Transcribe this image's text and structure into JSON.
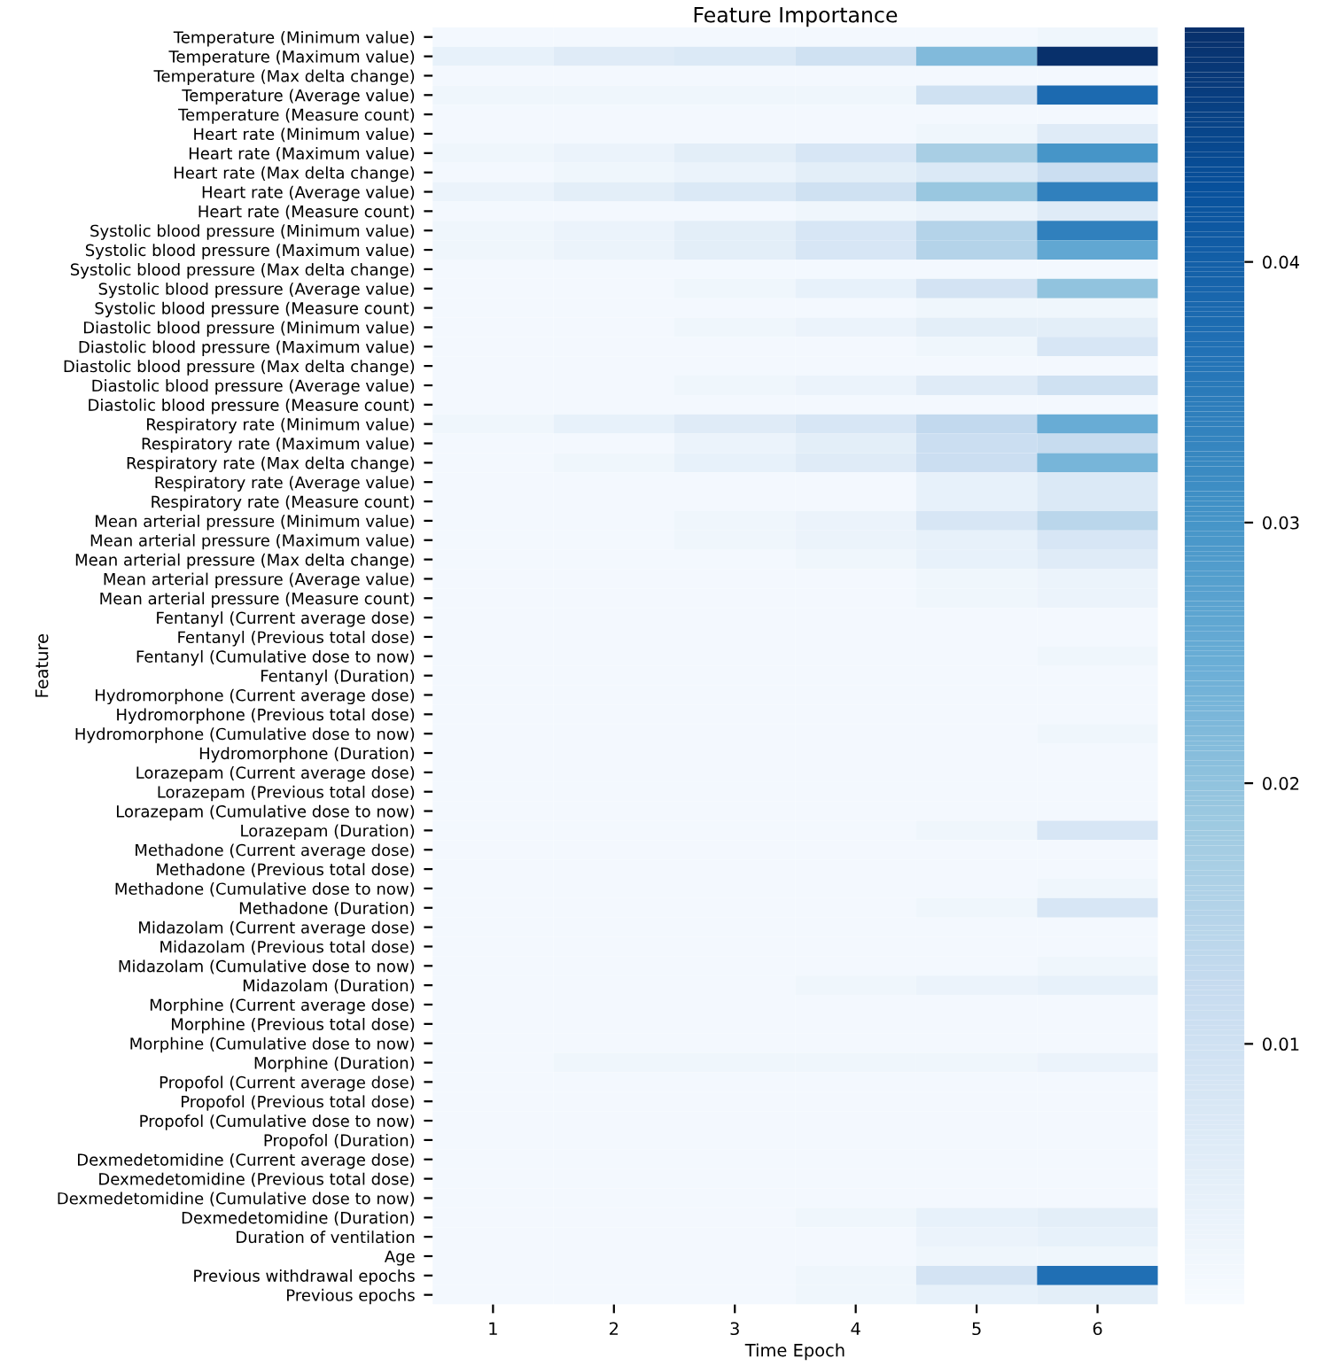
{
  "chart_data": {
    "type": "heatmap",
    "title": "Feature Importance",
    "xlabel": "Time Epoch",
    "ylabel": "Feature",
    "categories": [
      "1",
      "2",
      "3",
      "4",
      "5",
      "6"
    ],
    "y_categories": [
      "Temperature (Minimum value)",
      "Temperature (Maximum value)",
      "Temperature (Max delta change)",
      "Temperature (Average value)",
      "Temperature (Measure count)",
      "Heart rate (Minimum value)",
      "Heart rate (Maximum value)",
      "Heart rate (Max delta change)",
      "Heart rate (Average value)",
      "Heart rate (Measure count)",
      "Systolic blood pressure (Minimum value)",
      "Systolic blood pressure (Maximum value)",
      "Systolic blood pressure (Max delta change)",
      "Systolic blood pressure (Average value)",
      "Systolic blood pressure (Measure count)",
      "Diastolic blood pressure (Minimum value)",
      "Diastolic blood pressure (Maximum value)",
      "Diastolic blood pressure (Max delta change)",
      "Diastolic blood pressure (Average value)",
      "Diastolic blood pressure (Measure count)",
      "Respiratory rate (Minimum value)",
      "Respiratory rate (Maximum value)",
      "Respiratory rate (Max delta change)",
      "Respiratory rate (Average value)",
      "Respiratory rate (Measure count)",
      "Mean arterial pressure (Minimum value)",
      "Mean arterial pressure (Maximum value)",
      "Mean arterial pressure (Max delta change)",
      "Mean arterial pressure (Average value)",
      "Mean arterial pressure (Measure count)",
      "Fentanyl (Current average dose)",
      "Fentanyl (Previous total dose)",
      "Fentanyl (Cumulative dose to now)",
      "Fentanyl (Duration)",
      "Hydromorphone (Current average dose)",
      "Hydromorphone (Previous total dose)",
      "Hydromorphone (Cumulative dose to now)",
      "Hydromorphone (Duration)",
      "Lorazepam (Current average dose)",
      "Lorazepam (Previous total dose)",
      "Lorazepam (Cumulative dose to now)",
      "Lorazepam (Duration)",
      "Methadone (Current average dose)",
      "Methadone (Previous total dose)",
      "Methadone (Cumulative dose to now)",
      "Methadone (Duration)",
      "Midazolam (Current average dose)",
      "Midazolam (Previous total dose)",
      "Midazolam (Cumulative dose to now)",
      "Midazolam (Duration)",
      "Morphine (Current average dose)",
      "Morphine (Previous total dose)",
      "Morphine (Cumulative dose to now)",
      "Morphine (Duration)",
      "Propofol (Current average dose)",
      "Propofol (Previous total dose)",
      "Propofol (Cumulative dose to now)",
      "Propofol (Duration)",
      "Dexmedetomidine (Current average dose)",
      "Dexmedetomidine (Previous total dose)",
      "Dexmedetomidine (Cumulative dose to now)",
      "Dexmedetomidine (Duration)",
      "Duration of ventilation",
      "Age",
      "Previous withdrawal epochs",
      "Previous epochs"
    ],
    "cells": [
      [
        0.001,
        0.001,
        0.001,
        0.001,
        0.001,
        0.002
      ],
      [
        0.004,
        0.006,
        0.007,
        0.01,
        0.022,
        0.049
      ],
      [
        0.001,
        0.001,
        0.001,
        0.001,
        0.001,
        0.001
      ],
      [
        0.002,
        0.002,
        0.002,
        0.002,
        0.01,
        0.038
      ],
      [
        0.001,
        0.001,
        0.001,
        0.001,
        0.001,
        0.001
      ],
      [
        0.001,
        0.001,
        0.001,
        0.001,
        0.002,
        0.006
      ],
      [
        0.002,
        0.003,
        0.005,
        0.008,
        0.017,
        0.03
      ],
      [
        0.001,
        0.002,
        0.003,
        0.005,
        0.007,
        0.011
      ],
      [
        0.003,
        0.005,
        0.007,
        0.01,
        0.019,
        0.034
      ],
      [
        0.001,
        0.001,
        0.001,
        0.002,
        0.003,
        0.006
      ],
      [
        0.002,
        0.003,
        0.005,
        0.008,
        0.015,
        0.034
      ],
      [
        0.002,
        0.003,
        0.005,
        0.008,
        0.015,
        0.026
      ],
      [
        0.001,
        0.001,
        0.001,
        0.001,
        0.001,
        0.001
      ],
      [
        0.001,
        0.001,
        0.002,
        0.004,
        0.009,
        0.02
      ],
      [
        0.001,
        0.001,
        0.001,
        0.001,
        0.002,
        0.002
      ],
      [
        0.001,
        0.001,
        0.002,
        0.003,
        0.005,
        0.005
      ],
      [
        0.001,
        0.001,
        0.001,
        0.001,
        0.002,
        0.008
      ],
      [
        0.001,
        0.001,
        0.001,
        0.001,
        0.001,
        0.001
      ],
      [
        0.001,
        0.001,
        0.002,
        0.003,
        0.006,
        0.01
      ],
      [
        0.001,
        0.001,
        0.001,
        0.001,
        0.001,
        0.001
      ],
      [
        0.002,
        0.004,
        0.006,
        0.008,
        0.013,
        0.025
      ],
      [
        0.001,
        0.001,
        0.003,
        0.005,
        0.011,
        0.012
      ],
      [
        0.001,
        0.002,
        0.004,
        0.006,
        0.011,
        0.023
      ],
      [
        0.001,
        0.001,
        0.001,
        0.001,
        0.004,
        0.007
      ],
      [
        0.001,
        0.001,
        0.001,
        0.001,
        0.004,
        0.007
      ],
      [
        0.001,
        0.001,
        0.002,
        0.003,
        0.008,
        0.014
      ],
      [
        0.001,
        0.001,
        0.002,
        0.003,
        0.004,
        0.008
      ],
      [
        0.001,
        0.001,
        0.001,
        0.002,
        0.004,
        0.006
      ],
      [
        0.001,
        0.001,
        0.001,
        0.001,
        0.002,
        0.003
      ],
      [
        0.001,
        0.001,
        0.001,
        0.001,
        0.002,
        0.003
      ],
      [
        0.001,
        0.001,
        0.001,
        0.001,
        0.001,
        0.001
      ],
      [
        0.001,
        0.001,
        0.001,
        0.001,
        0.001,
        0.001
      ],
      [
        0.001,
        0.001,
        0.001,
        0.001,
        0.001,
        0.002
      ],
      [
        0.001,
        0.001,
        0.001,
        0.001,
        0.001,
        0.001
      ],
      [
        0.001,
        0.001,
        0.001,
        0.001,
        0.001,
        0.001
      ],
      [
        0.001,
        0.001,
        0.001,
        0.001,
        0.001,
        0.001
      ],
      [
        0.001,
        0.001,
        0.001,
        0.001,
        0.001,
        0.002
      ],
      [
        0.001,
        0.001,
        0.001,
        0.001,
        0.001,
        0.001
      ],
      [
        0.001,
        0.001,
        0.001,
        0.001,
        0.001,
        0.001
      ],
      [
        0.001,
        0.001,
        0.001,
        0.001,
        0.001,
        0.001
      ],
      [
        0.001,
        0.001,
        0.001,
        0.001,
        0.001,
        0.001
      ],
      [
        0.001,
        0.001,
        0.001,
        0.001,
        0.002,
        0.008
      ],
      [
        0.001,
        0.001,
        0.001,
        0.001,
        0.001,
        0.001
      ],
      [
        0.001,
        0.001,
        0.001,
        0.001,
        0.001,
        0.001
      ],
      [
        0.001,
        0.001,
        0.001,
        0.001,
        0.001,
        0.002
      ],
      [
        0.001,
        0.001,
        0.001,
        0.001,
        0.002,
        0.008
      ],
      [
        0.001,
        0.001,
        0.001,
        0.001,
        0.001,
        0.001
      ],
      [
        0.001,
        0.001,
        0.001,
        0.001,
        0.001,
        0.001
      ],
      [
        0.001,
        0.001,
        0.001,
        0.001,
        0.001,
        0.002
      ],
      [
        0.001,
        0.001,
        0.001,
        0.002,
        0.003,
        0.004
      ],
      [
        0.001,
        0.001,
        0.001,
        0.001,
        0.001,
        0.001
      ],
      [
        0.001,
        0.001,
        0.001,
        0.001,
        0.001,
        0.001
      ],
      [
        0.001,
        0.001,
        0.001,
        0.001,
        0.001,
        0.001
      ],
      [
        0.001,
        0.002,
        0.002,
        0.002,
        0.002,
        0.003
      ],
      [
        0.001,
        0.001,
        0.001,
        0.001,
        0.001,
        0.001
      ],
      [
        0.001,
        0.001,
        0.001,
        0.001,
        0.001,
        0.001
      ],
      [
        0.001,
        0.001,
        0.001,
        0.001,
        0.001,
        0.001
      ],
      [
        0.001,
        0.001,
        0.001,
        0.001,
        0.001,
        0.001
      ],
      [
        0.001,
        0.001,
        0.001,
        0.001,
        0.001,
        0.001
      ],
      [
        0.001,
        0.001,
        0.001,
        0.001,
        0.001,
        0.001
      ],
      [
        0.001,
        0.001,
        0.001,
        0.001,
        0.001,
        0.001
      ],
      [
        0.001,
        0.001,
        0.001,
        0.002,
        0.004,
        0.005
      ],
      [
        0.001,
        0.001,
        0.001,
        0.001,
        0.003,
        0.004
      ],
      [
        0.001,
        0.001,
        0.001,
        0.001,
        0.002,
        0.002
      ],
      [
        0.001,
        0.001,
        0.001,
        0.002,
        0.009,
        0.037
      ],
      [
        0.001,
        0.001,
        0.001,
        0.002,
        0.004,
        0.005
      ]
    ],
    "clim": [
      0,
      0.049
    ],
    "cticks": [
      0.01,
      0.02,
      0.03,
      0.04
    ]
  }
}
